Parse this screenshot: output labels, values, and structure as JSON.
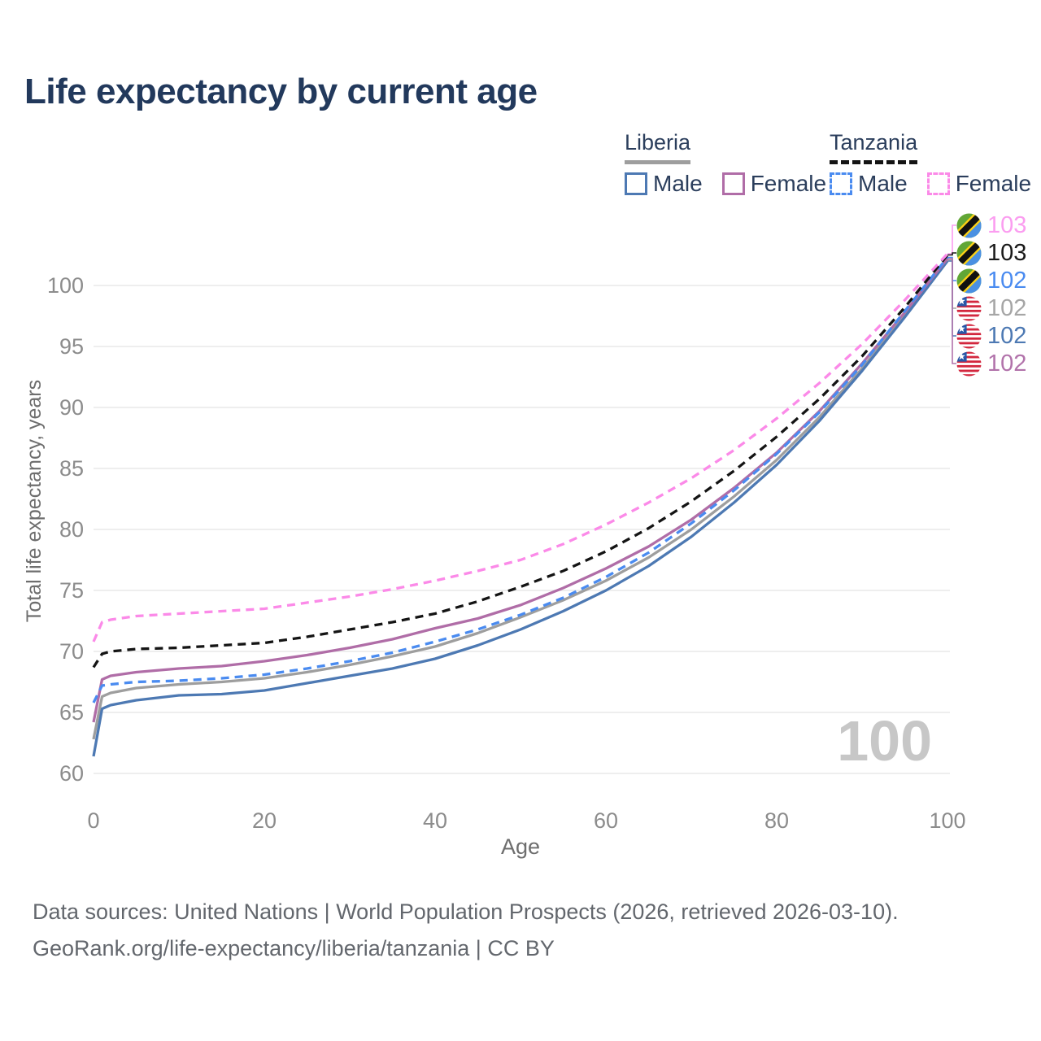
{
  "page": {
    "title": "Life expectancy by current age"
  },
  "legend": {
    "liberia": {
      "name": "Liberia",
      "male_label": "Male",
      "female_label": "Female"
    },
    "tanzania": {
      "name": "Tanzania",
      "male_label": "Male",
      "female_label": "Female"
    }
  },
  "axes": {
    "x_label": "Age",
    "y_label": "Total life expectancy, years"
  },
  "watermark": "100",
  "footer": {
    "line1": "Data sources: United Nations | World Population Prospects (2026, retrieved 2026-03-10).",
    "line2": "GeoRank.org/life-expectancy/liberia/tanzania | CC BY"
  },
  "colors": {
    "title": "#22395c",
    "axis_text": "#8c8c8c",
    "grid": "#e8e8e8",
    "watermark": "#c7c7c7",
    "liberia_male": "#4d79b3",
    "liberia_female": "#b06da7",
    "liberia_both": "#9e9e9e",
    "tanzania_male": "#4a8bf0",
    "tanzania_female": "#fb8ae8",
    "tanzania_both": "#141414"
  },
  "chart_data": {
    "type": "line",
    "title": "Life expectancy by current age",
    "xlabel": "Age",
    "ylabel": "Total life expectancy, years",
    "xlim": [
      0,
      100
    ],
    "ylim": [
      60,
      103
    ],
    "xticks": [
      0,
      20,
      40,
      60,
      80,
      100
    ],
    "yticks": [
      60,
      65,
      70,
      75,
      80,
      85,
      90,
      95,
      100
    ],
    "grid": "horizontal",
    "legend_position": "top-right",
    "x": [
      0,
      1,
      2,
      5,
      10,
      15,
      20,
      25,
      30,
      35,
      40,
      45,
      50,
      55,
      60,
      65,
      70,
      75,
      80,
      85,
      90,
      95,
      100
    ],
    "series": [
      {
        "key": "lr_both",
        "name": "Liberia Both sexes",
        "color": "#9e9e9e",
        "dash": "solid",
        "values": [
          62.8,
          66.3,
          66.6,
          67.0,
          67.3,
          67.5,
          67.8,
          68.3,
          68.9,
          69.6,
          70.4,
          71.5,
          72.8,
          74.2,
          75.8,
          77.7,
          80.0,
          82.7,
          85.7,
          89.2,
          93.2,
          97.6,
          102.1
        ]
      },
      {
        "key": "lr_male",
        "name": "Liberia Male",
        "color": "#4d79b3",
        "dash": "solid",
        "values": [
          61.4,
          65.3,
          65.6,
          66.0,
          66.4,
          66.5,
          66.8,
          67.4,
          68.0,
          68.6,
          69.4,
          70.5,
          71.8,
          73.3,
          75.0,
          77.0,
          79.4,
          82.2,
          85.3,
          88.9,
          93.0,
          97.4,
          102.0
        ]
      },
      {
        "key": "lr_female",
        "name": "Liberia Female",
        "color": "#b06da7",
        "dash": "solid",
        "values": [
          64.2,
          67.7,
          68.0,
          68.3,
          68.6,
          68.8,
          69.2,
          69.7,
          70.3,
          71.0,
          71.9,
          72.7,
          73.8,
          75.2,
          76.8,
          78.6,
          80.8,
          83.4,
          86.3,
          89.7,
          93.6,
          97.8,
          102.2
        ]
      },
      {
        "key": "tz_male",
        "name": "Tanzania Male",
        "color": "#4a8bf0",
        "dash": "dashed",
        "values": [
          65.8,
          67.2,
          67.3,
          67.5,
          67.6,
          67.8,
          68.1,
          68.6,
          69.2,
          69.9,
          70.8,
          71.8,
          73.0,
          74.4,
          76.1,
          78.1,
          80.5,
          83.2,
          86.2,
          89.6,
          93.5,
          97.9,
          102.3
        ]
      },
      {
        "key": "tz_both",
        "name": "Tanzania Both sexes",
        "color": "#141414",
        "dash": "dashed",
        "values": [
          68.7,
          69.8,
          70.0,
          70.2,
          70.3,
          70.5,
          70.7,
          71.2,
          71.8,
          72.4,
          73.1,
          74.1,
          75.3,
          76.6,
          78.2,
          80.1,
          82.3,
          84.8,
          87.6,
          90.7,
          94.2,
          98.2,
          102.5
        ]
      },
      {
        "key": "tz_female",
        "name": "Tanzania Female",
        "color": "#fb8ae8",
        "dash": "dashed",
        "values": [
          70.8,
          72.4,
          72.6,
          72.9,
          73.1,
          73.3,
          73.5,
          74.0,
          74.5,
          75.1,
          75.8,
          76.6,
          77.5,
          78.8,
          80.4,
          82.2,
          84.2,
          86.5,
          89.1,
          92.0,
          95.2,
          98.8,
          102.6
        ]
      }
    ],
    "end_labels": [
      {
        "value": "103",
        "color": "#fb9df0",
        "flag": "tanzania",
        "series": "tz_female"
      },
      {
        "value": "103",
        "color": "#1a1a1a",
        "flag": "tanzania",
        "series": "tz_both"
      },
      {
        "value": "102",
        "color": "#4a8bf0",
        "flag": "tanzania",
        "series": "tz_male"
      },
      {
        "value": "102",
        "color": "#a6a6a6",
        "flag": "liberia",
        "series": "lr_both"
      },
      {
        "value": "102",
        "color": "#4d79b3",
        "flag": "liberia",
        "series": "lr_male"
      },
      {
        "value": "102",
        "color": "#b273ab",
        "flag": "liberia",
        "series": "lr_female"
      }
    ]
  }
}
